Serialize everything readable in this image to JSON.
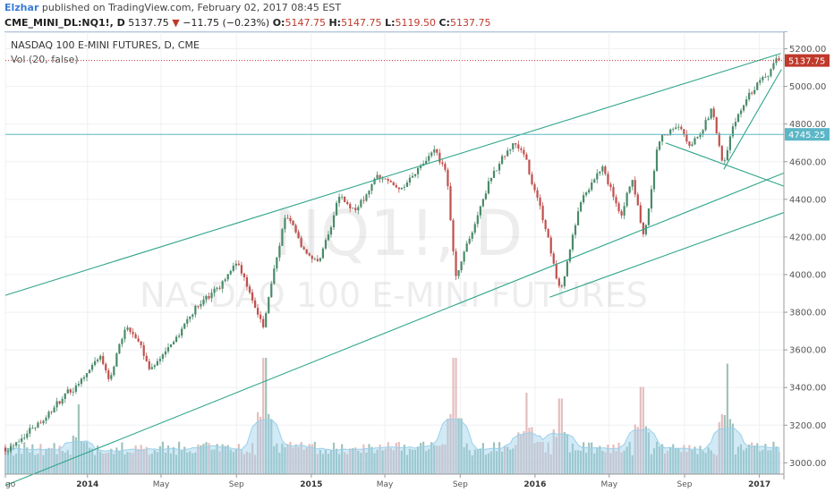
{
  "header": {
    "author": "Elzhar",
    "published": " published on TradingView.com, February 02, 2017 08:45 EST",
    "symbol": "CME_MINI_DL:NQ1!, D",
    "last": "5137.75",
    "down_arrow": "▼",
    "change": "−11.75 (−0.23%)",
    "o_label": "O:",
    "o_value": "5147.75",
    "h_label": "H:",
    "h_value": "5147.75",
    "l_label": "L:",
    "l_value": "5119.50",
    "c_label": "C:",
    "c_value": "5137.75"
  },
  "chart_data": {
    "type": "candlestick",
    "title": "NASDAQ 100 E-MINI FUTURES, D, CME",
    "indicator": "Vol (20, false)",
    "watermark_symbol": "NQ1!, D",
    "watermark_name": "NASDAQ 100 E-MINI FUTURES",
    "ylim": [
      2940,
      5250
    ],
    "yticks": [
      3000,
      3200,
      3400,
      3600,
      3800,
      4000,
      4200,
      4400,
      4600,
      4800,
      5000,
      5200
    ],
    "ytick_labels": [
      "3000.00",
      "3200.00",
      "3400.00",
      "3600.00",
      "3800.00",
      "4000.00",
      "4200.00",
      "4400.00",
      "4600.00",
      "4800.00",
      "5000.00",
      "5200.00"
    ],
    "xlim": [
      "2013-08-20",
      "2017-02-10"
    ],
    "x_ticks": [
      {
        "date": "2013-08-20",
        "label": "go",
        "bold": false
      },
      {
        "date": "2014-01-01",
        "label": "2014",
        "bold": true
      },
      {
        "date": "2014-05-01",
        "label": "May",
        "bold": false
      },
      {
        "date": "2014-09-01",
        "label": "Sep",
        "bold": false
      },
      {
        "date": "2015-01-01",
        "label": "2015",
        "bold": true
      },
      {
        "date": "2015-05-01",
        "label": "May",
        "bold": false
      },
      {
        "date": "2015-09-01",
        "label": "Sep",
        "bold": false
      },
      {
        "date": "2016-01-01",
        "label": "2016",
        "bold": true
      },
      {
        "date": "2016-05-01",
        "label": "May",
        "bold": false
      },
      {
        "date": "2016-09-01",
        "label": "Sep",
        "bold": false
      },
      {
        "date": "2017-01-01",
        "label": "2017",
        "bold": true
      }
    ],
    "price_path": [
      {
        "date": "2013-08-20",
        "price": 3080
      },
      {
        "date": "2013-10-15",
        "price": 3230
      },
      {
        "date": "2013-12-01",
        "price": 3360
      },
      {
        "date": "2014-01-20",
        "price": 3570
      },
      {
        "date": "2014-02-05",
        "price": 3460
      },
      {
        "date": "2014-03-05",
        "price": 3720
      },
      {
        "date": "2014-04-15",
        "price": 3500
      },
      {
        "date": "2014-05-20",
        "price": 3640
      },
      {
        "date": "2014-07-01",
        "price": 3850
      },
      {
        "date": "2014-08-05",
        "price": 3910
      },
      {
        "date": "2014-09-01",
        "price": 4080
      },
      {
        "date": "2014-10-15",
        "price": 3720
      },
      {
        "date": "2014-11-20",
        "price": 4330
      },
      {
        "date": "2014-12-15",
        "price": 4160
      },
      {
        "date": "2015-01-15",
        "price": 4060
      },
      {
        "date": "2015-02-15",
        "price": 4420
      },
      {
        "date": "2015-03-15",
        "price": 4330
      },
      {
        "date": "2015-04-20",
        "price": 4510
      },
      {
        "date": "2015-06-01",
        "price": 4460
      },
      {
        "date": "2015-07-20",
        "price": 4640
      },
      {
        "date": "2015-08-10",
        "price": 4540
      },
      {
        "date": "2015-08-24",
        "price": 3980
      },
      {
        "date": "2015-09-20",
        "price": 4220
      },
      {
        "date": "2015-10-20",
        "price": 4520
      },
      {
        "date": "2015-11-25",
        "price": 4700
      },
      {
        "date": "2015-12-15",
        "price": 4610
      },
      {
        "date": "2016-01-10",
        "price": 4350
      },
      {
        "date": "2016-02-11",
        "price": 3910
      },
      {
        "date": "2016-03-15",
        "price": 4400
      },
      {
        "date": "2016-04-20",
        "price": 4560
      },
      {
        "date": "2016-05-20",
        "price": 4330
      },
      {
        "date": "2016-06-08",
        "price": 4530
      },
      {
        "date": "2016-06-27",
        "price": 4180
      },
      {
        "date": "2016-07-20",
        "price": 4720
      },
      {
        "date": "2016-08-20",
        "price": 4800
      },
      {
        "date": "2016-09-09",
        "price": 4660
      },
      {
        "date": "2016-10-15",
        "price": 4880
      },
      {
        "date": "2016-11-04",
        "price": 4580
      },
      {
        "date": "2016-11-20",
        "price": 4800
      },
      {
        "date": "2016-12-15",
        "price": 4950
      },
      {
        "date": "2017-01-20",
        "price": 5100
      },
      {
        "date": "2017-02-02",
        "price": 5137.75
      }
    ],
    "volume_peaks": [
      {
        "date": "2013-12-18",
        "vol": 0.6
      },
      {
        "date": "2014-10-16",
        "vol": 1.0
      },
      {
        "date": "2015-08-24",
        "vol": 1.0
      },
      {
        "date": "2015-12-18",
        "vol": 0.7
      },
      {
        "date": "2016-02-11",
        "vol": 0.65
      },
      {
        "date": "2016-06-24",
        "vol": 0.75
      },
      {
        "date": "2016-11-09",
        "vol": 0.95
      }
    ],
    "trendlines": [
      {
        "name": "channel-top",
        "from": {
          "date": "2013-08-20",
          "price": 3890
        },
        "to": {
          "date": "2017-02-05",
          "price": 5175
        }
      },
      {
        "name": "channel-bottom",
        "from": {
          "date": "2013-08-20",
          "price": 2880
        },
        "to": {
          "date": "2017-02-10",
          "price": 4540
        }
      },
      {
        "name": "lower-support",
        "from": {
          "date": "2016-01-25",
          "price": 3880
        },
        "to": {
          "date": "2017-02-10",
          "price": 4330
        }
      },
      {
        "name": "descending",
        "from": {
          "date": "2016-08-01",
          "price": 4700
        },
        "to": {
          "date": "2017-02-10",
          "price": 4470
        }
      },
      {
        "name": "steep-up",
        "from": {
          "date": "2016-11-04",
          "price": 4560
        },
        "to": {
          "date": "2017-02-06",
          "price": 5090
        }
      }
    ],
    "horizontal_line": {
      "price": 4745.25,
      "label": "4745.25",
      "color": "#5bb7c7"
    },
    "last_price_line": {
      "price": 5137.75,
      "label": "5137.75",
      "color": "#c0392b"
    },
    "colors": {
      "up": "#4a8a6a",
      "down": "#c0504d",
      "trend": "#2fa58a",
      "vol_up": "#8fb9b0",
      "vol_down": "#e0b3b3",
      "vol_ma": "#9ad0ea",
      "grid": "#eef0f3"
    }
  }
}
